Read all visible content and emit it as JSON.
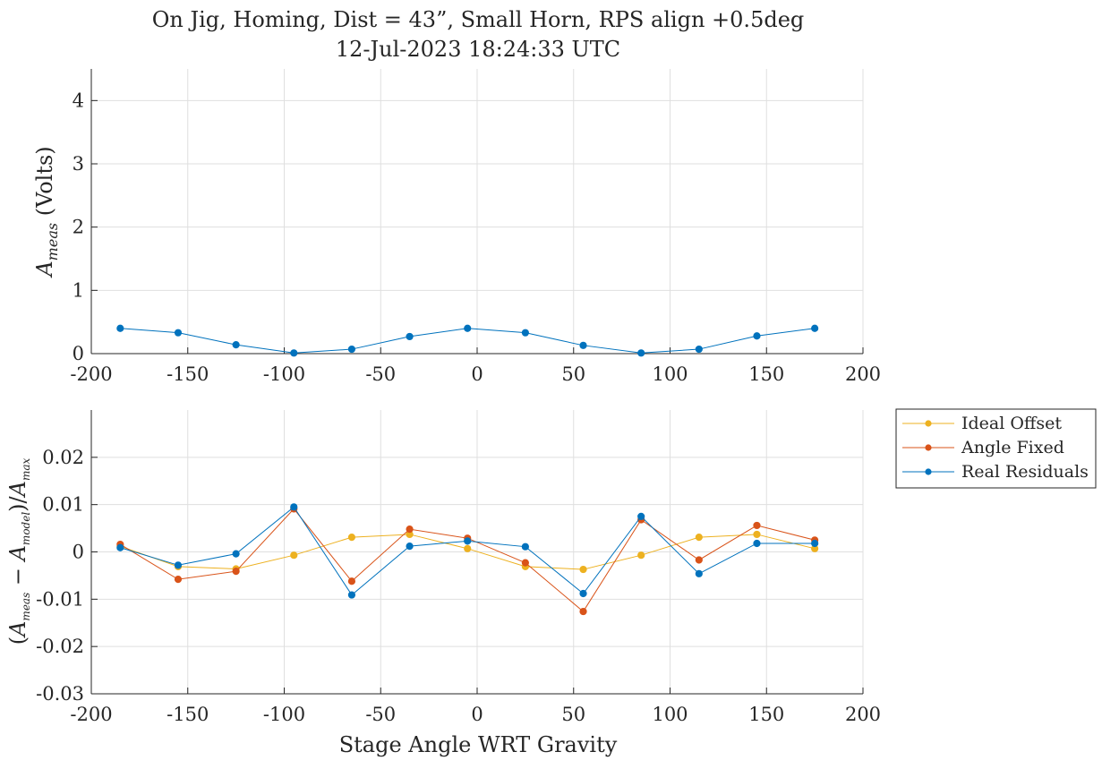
{
  "chart_data": [
    {
      "type": "line",
      "title": "On Jig, Homing, Dist = 43”, Small Horn, RPS align +0.5deg",
      "subtitle": "12-Jul-2023 18:24:33 UTC",
      "xlabel": "",
      "ylabel": "A_meas (Volts)",
      "xlim": [
        -200,
        200
      ],
      "ylim": [
        0,
        4.5
      ],
      "grid": true,
      "x_ticks": [
        "-200",
        "-150",
        "-100",
        "-50",
        "0",
        "50",
        "100",
        "150",
        "200"
      ],
      "y_ticks": [
        "0",
        "1",
        "2",
        "3",
        "4"
      ],
      "series": [
        {
          "color": "#0072BD",
          "x": [
            -185,
            -155,
            -125,
            -95,
            -65,
            -35,
            -5,
            25,
            55,
            85,
            115,
            145,
            175
          ],
          "values": [
            0.4,
            0.33,
            0.14,
            0.01,
            0.07,
            0.27,
            0.4,
            0.33,
            0.13,
            0.01,
            0.07,
            0.28,
            0.4
          ]
        }
      ]
    },
    {
      "type": "line",
      "xlabel": "Stage Angle WRT Gravity",
      "ylabel": "(A_meas − A_model)/A_max",
      "xlim": [
        -200,
        200
      ],
      "ylim": [
        -0.03,
        0.03
      ],
      "grid": true,
      "legend_position": "outside-right",
      "x_ticks": [
        "-200",
        "-150",
        "-100",
        "-50",
        "0",
        "50",
        "100",
        "150",
        "200"
      ],
      "y_ticks": [
        "-0.03",
        "-0.02",
        "-0.01",
        "0",
        "0.01",
        "0.02"
      ],
      "x": [
        -185,
        -155,
        -125,
        -95,
        -65,
        -35,
        -5,
        25,
        55,
        85,
        115,
        145,
        175
      ],
      "series": [
        {
          "name": "Ideal Offset",
          "color": "#EDB120",
          "values": [
            0.0012,
            -0.0031,
            -0.0036,
            -0.0007,
            0.0031,
            0.0037,
            0.0007,
            -0.0031,
            -0.0037,
            -0.0007,
            0.0031,
            0.0037,
            0.0007
          ]
        },
        {
          "name": "Angle Fixed",
          "color": "#D95319",
          "values": [
            0.0016,
            -0.0058,
            -0.0041,
            0.0091,
            -0.0062,
            0.0048,
            0.0029,
            -0.0023,
            -0.0126,
            0.0068,
            -0.0017,
            0.0056,
            0.0025
          ]
        },
        {
          "name": "Real Residuals",
          "color": "#0072BD",
          "values": [
            0.0009,
            -0.0028,
            -0.0004,
            0.0095,
            -0.0091,
            0.0012,
            0.0023,
            0.0011,
            -0.0088,
            0.0075,
            -0.0046,
            0.0018,
            0.0018
          ]
        }
      ]
    }
  ]
}
